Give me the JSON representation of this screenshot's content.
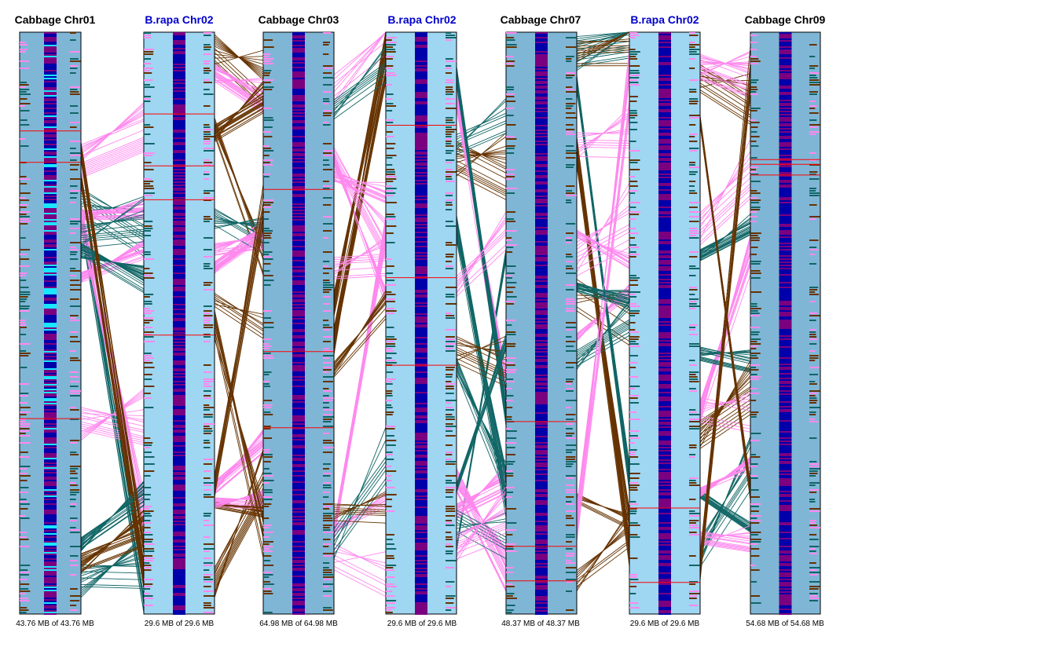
{
  "chromosomes": [
    {
      "title": "Cabbage Chr01",
      "size_label": "43.76 MB of 43.76 MB",
      "species": "cabbage"
    },
    {
      "title": "B.rapa Chr02",
      "size_label": "29.6 MB of 29.6 MB",
      "species": "brapa"
    },
    {
      "title": "Cabbage Chr03",
      "size_label": "64.98 MB of 64.98 MB",
      "species": "cabbage"
    },
    {
      "title": "B.rapa Chr02",
      "size_label": "29.6 MB of 29.6 MB",
      "species": "brapa"
    },
    {
      "title": "Cabbage Chr07",
      "size_label": "48.37 MB of 48.37 MB",
      "species": "cabbage"
    },
    {
      "title": "B.rapa Chr02",
      "size_label": "29.6 MB of 29.6 MB",
      "species": "brapa"
    },
    {
      "title": "Cabbage Chr09",
      "size_label": "54.68 MB of 54.68 MB",
      "species": "cabbage"
    }
  ],
  "colors": {
    "cabbage_title": "#000000",
    "brapa_title": "#0000cc",
    "cabbage_body": "#7fb6d6",
    "brapa_body": "#9fd6f2",
    "gene_dark": "#0000aa",
    "gene_purple": "#7a0080",
    "gene_cyan": "#19e6ff",
    "marker_red": "#ff0000",
    "syn_brown": "#663300",
    "syn_teal": "#116666",
    "syn_pink": "#ff88ee",
    "outline": "#000000"
  }
}
